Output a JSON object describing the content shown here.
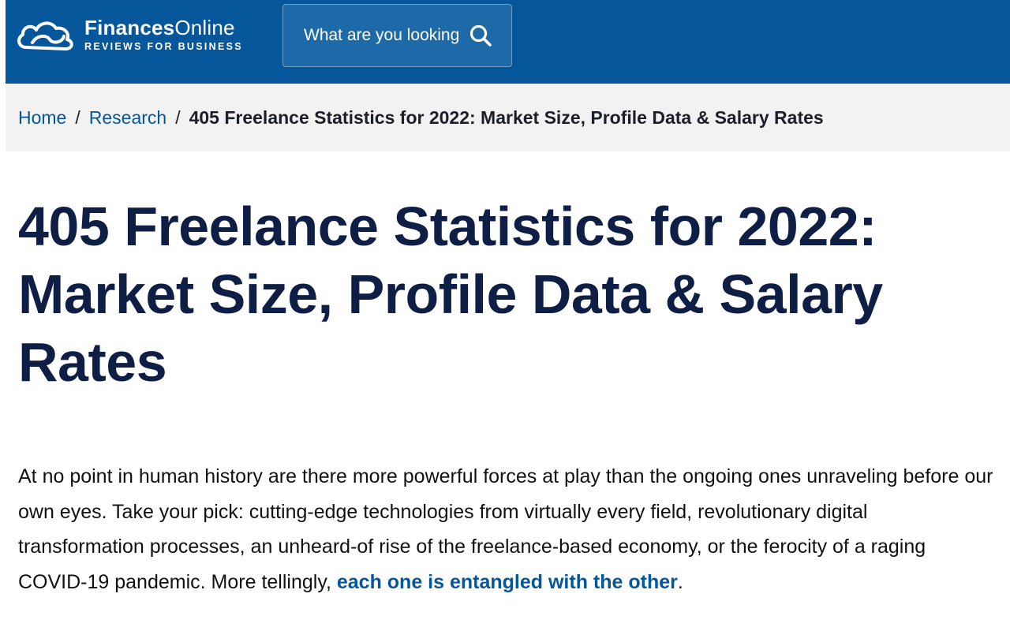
{
  "header": {
    "logo": {
      "title_bold": "Finances",
      "title_rest": "Online",
      "subtitle": "REVIEWS FOR BUSINESS"
    },
    "search": {
      "placeholder": "What are you looking",
      "icon": "search-icon"
    },
    "background_color": "#05569a"
  },
  "breadcrumb": {
    "items": [
      {
        "label": "Home"
      },
      {
        "label": "Research"
      }
    ],
    "separator": "/",
    "current": "405 Freelance Statistics for 2022: Market Size, Profile Data & Salary Rates"
  },
  "article": {
    "title": "405 Freelance Statistics for 2022: Market Size, Profile Data & Salary Rates",
    "intro_text": "At no point in human history are there more powerful forces at play than the ongoing ones unraveling before our own eyes. Take your pick: cutting-edge technologies from virtually every field, revolutionary digital transformation processes, an unheard-of rise of the freelance-based economy, or the ferocity of a raging COVID-19 pandemic. More tellingly, ",
    "intro_link": "each one is entangled with the other",
    "intro_end": "."
  },
  "colors": {
    "brand_blue": "#05569a",
    "title_navy": "#0e1e45",
    "breadcrumb_bg": "#f2f2f2"
  }
}
